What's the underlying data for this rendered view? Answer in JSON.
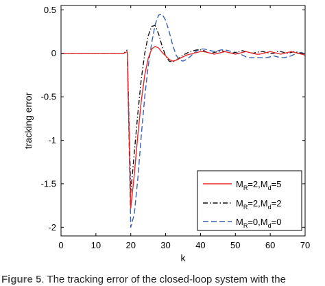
{
  "chart_data": {
    "type": "line",
    "xlabel": "k",
    "ylabel": "tracking error",
    "xlim": [
      0,
      70
    ],
    "ylim": [
      -2.1,
      0.55
    ],
    "xticks": [
      0,
      10,
      20,
      30,
      40,
      50,
      60,
      70
    ],
    "yticks": [
      0.5,
      0,
      -0.5,
      -1,
      -1.5,
      -2
    ],
    "ytick_labels": [
      "0.5",
      "0",
      "-0.5",
      "-1",
      "-1.5",
      "-2"
    ],
    "grid": false,
    "legend_position": "bottom-right",
    "series": [
      {
        "legend_main": "M",
        "legend_sub1": "R",
        "legend_mid": "=2,M",
        "legend_sub2": "d",
        "legend_end": "=5",
        "color": "#e8262a",
        "dash": "",
        "x": [
          0,
          18,
          19,
          20,
          21,
          22,
          23,
          24,
          25,
          26,
          27,
          28,
          29,
          30,
          31,
          32,
          33,
          34,
          35,
          36,
          37,
          38,
          39,
          40,
          41,
          42,
          43,
          44,
          45,
          46,
          47,
          48,
          49,
          50,
          51,
          52,
          53,
          54,
          55,
          56,
          57,
          58,
          59,
          60,
          61,
          62,
          63,
          64,
          65,
          66,
          67,
          68,
          69,
          70
        ],
        "y": [
          0,
          0,
          0.02,
          -1.78,
          -1.4,
          -0.95,
          -0.55,
          -0.25,
          -0.06,
          0.05,
          0.08,
          0.06,
          0.01,
          -0.03,
          -0.07,
          -0.09,
          -0.08,
          -0.06,
          -0.04,
          -0.02,
          -0.01,
          0.0,
          0.01,
          0.02,
          0.02,
          0.01,
          0.0,
          -0.01,
          0.0,
          0.01,
          0.02,
          0.01,
          0.0,
          -0.01,
          0.0,
          0.01,
          0.02,
          0.01,
          0.0,
          -0.01,
          -0.01,
          0.0,
          0.01,
          0.02,
          0.01,
          0.0,
          -0.01,
          0.0,
          0.01,
          0.02,
          0.01,
          0.0,
          -0.01,
          -0.02
        ]
      },
      {
        "legend_main": "M",
        "legend_sub1": "R",
        "legend_mid": "=2,M",
        "legend_sub2": "d",
        "legend_end": "=2",
        "color": "#111111",
        "dash": "7,3,1.5,3",
        "x": [
          0,
          18,
          19,
          20,
          21,
          22,
          23,
          24,
          25,
          26,
          27,
          28,
          29,
          30,
          31,
          32,
          33,
          34,
          35,
          36,
          37,
          38,
          39,
          40,
          41,
          42,
          43,
          44,
          45,
          46,
          47,
          48,
          49,
          50,
          51,
          52,
          53,
          54,
          55,
          56,
          57,
          58,
          59,
          60,
          61,
          62,
          63,
          64,
          65,
          66,
          67,
          68,
          69,
          70
        ],
        "y": [
          0,
          0,
          0.04,
          -1.6,
          -1.15,
          -0.7,
          -0.3,
          0.0,
          0.2,
          0.31,
          0.32,
          0.22,
          0.08,
          -0.03,
          -0.09,
          -0.1,
          -0.08,
          -0.05,
          -0.02,
          0.0,
          0.02,
          0.03,
          0.04,
          0.04,
          0.03,
          0.01,
          0.0,
          0.01,
          0.02,
          0.03,
          0.02,
          0.01,
          0.0,
          0.01,
          0.02,
          0.03,
          0.02,
          0.01,
          0.0,
          0.01,
          0.02,
          0.02,
          0.01,
          0.0,
          0.0,
          0.02,
          0.02,
          0.01,
          0.0,
          0.01,
          0.02,
          0.01,
          0.0,
          0.0
        ]
      },
      {
        "legend_main": "M",
        "legend_sub1": "R",
        "legend_mid": "=0,M",
        "legend_sub2": "d",
        "legend_end": "=0",
        "color": "#3a5fb0",
        "dash": "8,4",
        "x": [
          0,
          18,
          19,
          20,
          21,
          22,
          23,
          24,
          25,
          26,
          27,
          28,
          29,
          30,
          31,
          32,
          33,
          34,
          35,
          36,
          37,
          38,
          39,
          40,
          41,
          42,
          43,
          44,
          45,
          46,
          47,
          48,
          49,
          50,
          51,
          52,
          53,
          54,
          55,
          56,
          57,
          58,
          59,
          60,
          61,
          62,
          63,
          64,
          65,
          66,
          67,
          68,
          69,
          70
        ],
        "y": [
          0,
          0,
          0.01,
          -2.0,
          -1.85,
          -1.45,
          -0.95,
          -0.5,
          -0.15,
          0.12,
          0.33,
          0.44,
          0.45,
          0.38,
          0.25,
          0.1,
          -0.02,
          -0.08,
          -0.09,
          -0.07,
          -0.04,
          0.0,
          0.03,
          0.05,
          0.05,
          0.04,
          0.03,
          0.02,
          0.03,
          0.04,
          0.04,
          0.03,
          0.02,
          0.01,
          0.0,
          -0.02,
          -0.04,
          -0.05,
          -0.05,
          -0.05,
          -0.05,
          -0.05,
          -0.05,
          -0.04,
          -0.03,
          -0.04,
          -0.05,
          -0.05,
          -0.04,
          -0.03,
          -0.01,
          0.0,
          0.01,
          0.0
        ]
      }
    ]
  },
  "caption": {
    "prefix": "Figure 5",
    "text": ". The tracking error of the closed-loop system with the"
  }
}
